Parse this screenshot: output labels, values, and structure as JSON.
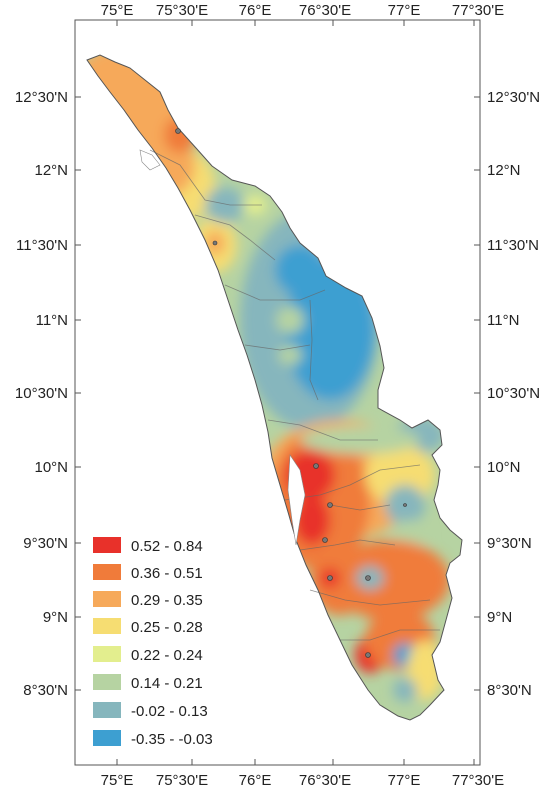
{
  "map": {
    "x_ticks": [
      "75°E",
      "75°30'E",
      "76°E",
      "76°30'E",
      "77°E",
      "77°30'E"
    ],
    "y_ticks": [
      "12°30'N",
      "12°N",
      "11°30'N",
      "11°N",
      "10°30'N",
      "10°N",
      "9°30'N",
      "9°N",
      "8°30'N"
    ],
    "legend": {
      "placement": "bottom-left",
      "classes": [
        {
          "label": "0.52 - 0.84",
          "color": "#e8312a"
        },
        {
          "label": "0.36 - 0.51",
          "color": "#f07b3a"
        },
        {
          "label": "0.29 - 0.35",
          "color": "#f6a95a"
        },
        {
          "label": "0.25 - 0.28",
          "color": "#f6dd72"
        },
        {
          "label": "0.22 - 0.24",
          "color": "#e3ee8e"
        },
        {
          "label": "0.14 - 0.21",
          "color": "#b6d3a2"
        },
        {
          "label": "-0.02 - 0.13",
          "color": "#86b6bd"
        },
        {
          "label": "-0.35 - -0.03",
          "color": "#3d9fd1"
        }
      ]
    }
  }
}
